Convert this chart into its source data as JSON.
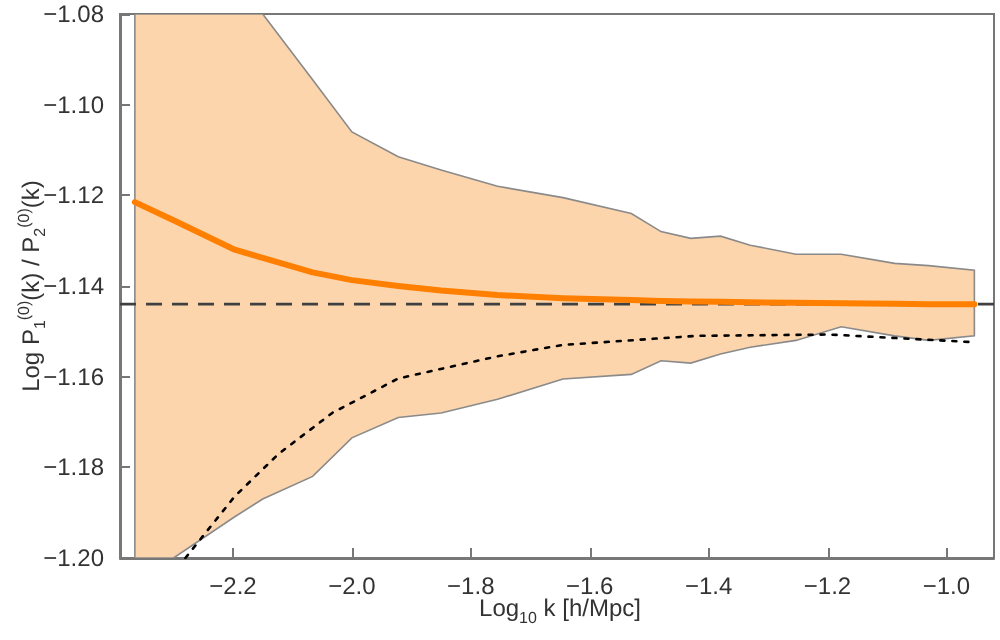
{
  "chart_data": {
    "type": "line",
    "xlabel": "Log$_{10}$ k [h/Mpc]",
    "ylabel": "Log P$_{1}$$^{(0)}$(k) / P$_{2}$$^{(0)}$(k)",
    "xlim": [
      -2.39,
      -0.92
    ],
    "ylim": [
      -1.2,
      -1.08
    ],
    "xticks": [
      {
        "value": -2.2,
        "label": "−2.2"
      },
      {
        "value": -2.0,
        "label": "−2.0"
      },
      {
        "value": -1.8,
        "label": "−1.8"
      },
      {
        "value": -1.6,
        "label": "−1.6"
      },
      {
        "value": -1.4,
        "label": "−1.4"
      },
      {
        "value": -1.2,
        "label": "−1.2"
      },
      {
        "value": -1.0,
        "label": "−1.0"
      }
    ],
    "yticks": [
      {
        "value": -1.2,
        "label": "−1.20"
      },
      {
        "value": -1.18,
        "label": "−1.18"
      },
      {
        "value": -1.16,
        "label": "−1.16"
      },
      {
        "value": -1.14,
        "label": "−1.14"
      },
      {
        "value": -1.12,
        "label": "−1.12"
      },
      {
        "value": -1.1,
        "label": "−1.10"
      },
      {
        "value": -1.08,
        "label": "−1.08"
      }
    ],
    "grid": false,
    "marker": "none",
    "series": [
      {
        "color": "#ff7f00",
        "line_style": "solid",
        "x": [
          -2.365,
          -2.3,
          -2.197,
          -2.15,
          -2.066,
          -2.0,
          -1.922,
          -1.85,
          -1.755,
          -1.645,
          -1.53,
          -1.48,
          -1.43,
          -1.38,
          -1.33,
          -1.253,
          -1.177,
          -1.087,
          -1.03,
          -0.953
        ],
        "values": [
          -1.1215,
          -1.1255,
          -1.132,
          -1.1338,
          -1.137,
          -1.1387,
          -1.14,
          -1.141,
          -1.142,
          -1.1427,
          -1.1431,
          -1.1433,
          -1.1434,
          -1.1435,
          -1.1436,
          -1.1437,
          -1.1438,
          -1.1439,
          -1.144,
          -1.144
        ],
        "upper": [
          -1.08,
          -1.08,
          -1.08,
          -1.08,
          -1.0945,
          -1.106,
          -1.1115,
          -1.1144,
          -1.118,
          -1.1205,
          -1.124,
          -1.128,
          -1.1295,
          -1.129,
          -1.131,
          -1.133,
          -1.133,
          -1.135,
          -1.1355,
          -1.1365
        ],
        "lower": [
          -1.2,
          -1.2,
          -1.1909,
          -1.187,
          -1.182,
          -1.1735,
          -1.169,
          -1.168,
          -1.165,
          -1.1605,
          -1.1595,
          -1.1565,
          -1.157,
          -1.155,
          -1.1535,
          -1.152,
          -1.149,
          -1.151,
          -1.152,
          -1.151
        ]
      },
      {
        "color": "#000000",
        "line_style": "dotted",
        "x": [
          -2.28,
          -2.197,
          -2.123,
          -2.033,
          -1.922,
          -1.755,
          -1.645,
          -1.421,
          -1.197,
          -0.953
        ],
        "values": [
          -1.2,
          -1.1864,
          -1.177,
          -1.168,
          -1.1604,
          -1.1555,
          -1.153,
          -1.151,
          -1.1507,
          -1.1524
        ]
      }
    ],
    "ref_lines": [
      {
        "axis": "y",
        "value": -1.144,
        "color": "#404040",
        "line_style": "dashed"
      }
    ]
  }
}
